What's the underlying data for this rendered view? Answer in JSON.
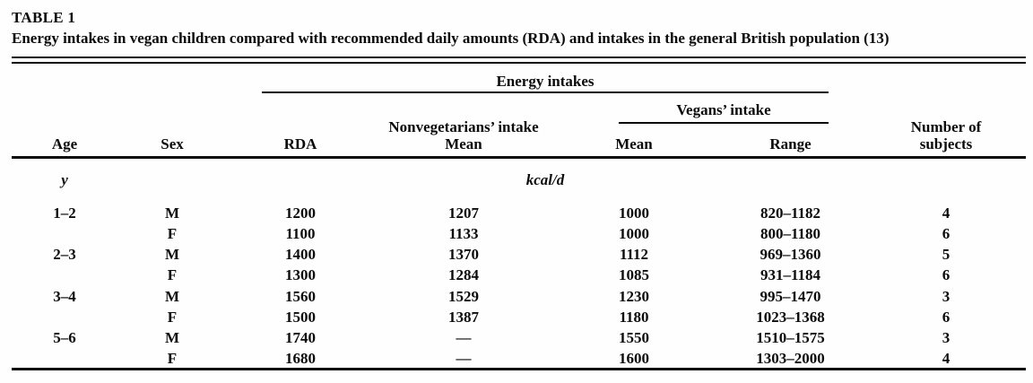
{
  "table": {
    "label": "TABLE 1",
    "caption": "Energy intakes in vegan children compared with recommended daily amounts (RDA) and intakes in the general British population (13)",
    "spanners": {
      "energy_intakes": "Energy intakes",
      "vegans_intake": "Vegans’ intake",
      "nonvegetarians_intake": "Nonvegetarians’ intake",
      "nonvegetarians_sub": "Mean",
      "number_of_line1": "Number of",
      "number_of_line2": "subjects"
    },
    "columns": {
      "age": "Age",
      "sex": "Sex",
      "rda": "RDA",
      "vegan_mean": "Mean",
      "vegan_range": "Range"
    },
    "units": {
      "age_unit": "y",
      "energy_unit": "kcal/d"
    },
    "rows": [
      {
        "age": "1–2",
        "sex": "M",
        "rda": "1200",
        "nonveg_mean": "1207",
        "vegan_mean": "1000",
        "vegan_range": "820–1182",
        "n": "4"
      },
      {
        "age": "",
        "sex": "F",
        "rda": "1100",
        "nonveg_mean": "1133",
        "vegan_mean": "1000",
        "vegan_range": "800–1180",
        "n": "6"
      },
      {
        "age": "2–3",
        "sex": "M",
        "rda": "1400",
        "nonveg_mean": "1370",
        "vegan_mean": "1112",
        "vegan_range": "969–1360",
        "n": "5"
      },
      {
        "age": "",
        "sex": "F",
        "rda": "1300",
        "nonveg_mean": "1284",
        "vegan_mean": "1085",
        "vegan_range": "931–1184",
        "n": "6"
      },
      {
        "age": "3–4",
        "sex": "M",
        "rda": "1560",
        "nonveg_mean": "1529",
        "vegan_mean": "1230",
        "vegan_range": "995–1470",
        "n": "3"
      },
      {
        "age": "",
        "sex": "F",
        "rda": "1500",
        "nonveg_mean": "1387",
        "vegan_mean": "1180",
        "vegan_range": "1023–1368",
        "n": "6"
      },
      {
        "age": "5–6",
        "sex": "M",
        "rda": "1740",
        "nonveg_mean": "—",
        "vegan_mean": "1550",
        "vegan_range": "1510–1575",
        "n": "3"
      },
      {
        "age": "",
        "sex": "F",
        "rda": "1680",
        "nonveg_mean": "—",
        "vegan_mean": "1600",
        "vegan_range": "1303–2000",
        "n": "4"
      }
    ],
    "colors": {
      "background": "#fefefe",
      "text": "#0b0b0b",
      "rule": "#0b0b0b"
    }
  }
}
